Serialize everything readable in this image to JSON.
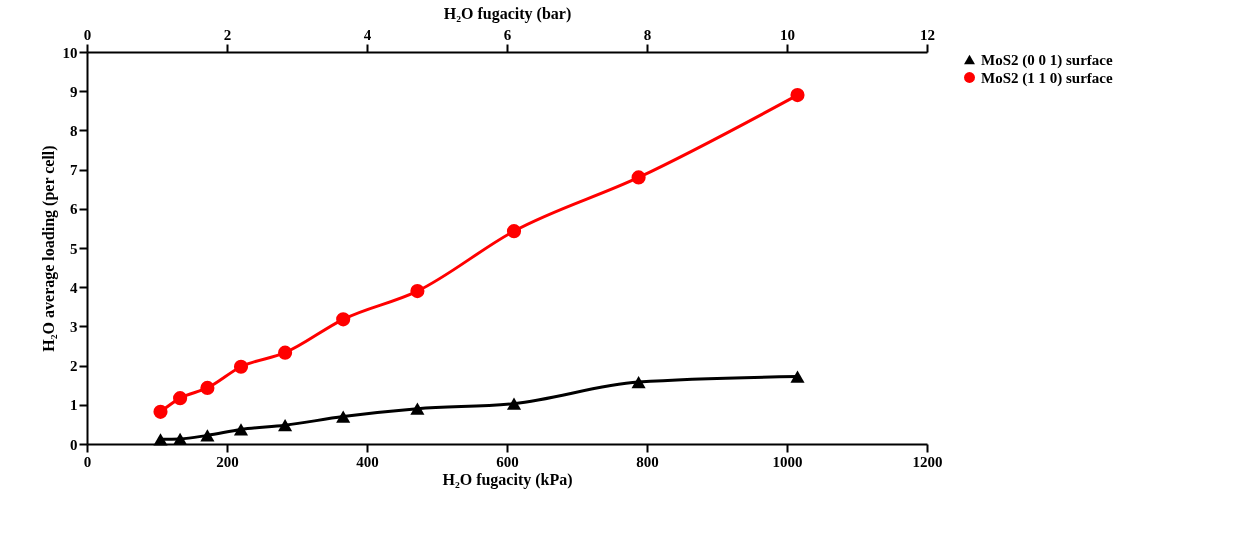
{
  "chart_data": {
    "type": "line",
    "xlabel": "H₂O fugacity (kPa)",
    "ylabel": "H₂O average loading (per cell)",
    "x2label": "H₂O fugacity (bar)",
    "xlim": [
      0,
      1200
    ],
    "xticks": [
      0,
      200,
      400,
      600,
      800,
      1000,
      1200
    ],
    "x2lim": [
      0,
      12
    ],
    "x2ticks": [
      0,
      2,
      4,
      6,
      8,
      10,
      12
    ],
    "ylim": [
      0,
      10
    ],
    "yticks": [
      0,
      1,
      2,
      3,
      4,
      5,
      6,
      7,
      8,
      9,
      10
    ],
    "x": [
      105,
      133,
      172,
      220,
      283,
      366,
      472,
      610,
      788,
      1015
    ],
    "series": [
      {
        "name": "MoS2 (0 0 1) surface",
        "color": "#000000",
        "marker": "triangle",
        "values": [
          0.12,
          0.13,
          0.22,
          0.37,
          0.48,
          0.7,
          0.9,
          1.03,
          1.58,
          1.72
        ]
      },
      {
        "name": "MoS2 (1 1 0) surface",
        "color": "#ff0000",
        "marker": "circle",
        "values": [
          0.82,
          1.17,
          1.43,
          1.97,
          2.33,
          3.18,
          3.9,
          5.43,
          6.8,
          8.9
        ]
      }
    ],
    "grid": false,
    "legend": "right",
    "line_style": "solid"
  }
}
